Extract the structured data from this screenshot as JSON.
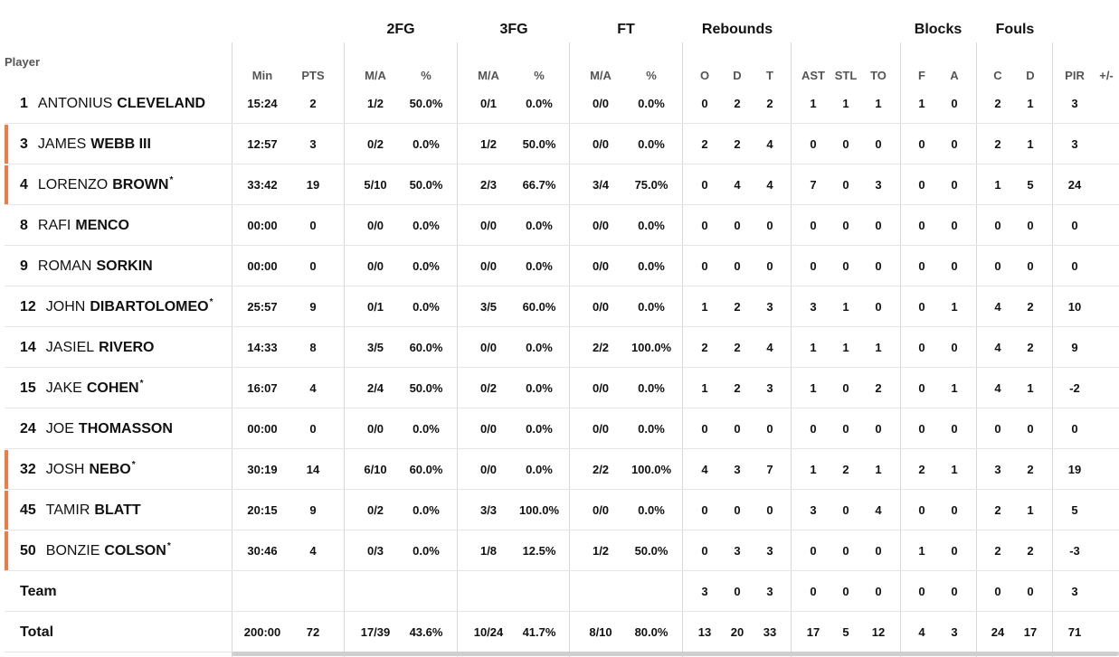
{
  "header": {
    "player_label": "Player",
    "groups": {
      "fg2": "2FG",
      "fg3": "3FG",
      "ft": "FT",
      "rebounds": "Rebounds",
      "blocks": "Blocks",
      "fouls": "Fouls"
    },
    "columns": {
      "min": "Min",
      "pts": "PTS",
      "fg2_ma": "M/A",
      "fg2_pct": "%",
      "fg3_ma": "M/A",
      "fg3_pct": "%",
      "ft_ma": "M/A",
      "ft_pct": "%",
      "reb_o": "O",
      "reb_d": "D",
      "reb_t": "T",
      "ast": "AST",
      "stl": "STL",
      "to": "TO",
      "blk_f": "F",
      "blk_a": "A",
      "foul_c": "C",
      "foul_d": "D",
      "pir": "PIR",
      "plusminus": "+/-"
    }
  },
  "colors": {
    "accent": "#f07a45",
    "grid": "#d8d8d8",
    "row_divider": "#e5e5e5",
    "header_text": "#555555"
  },
  "players": [
    {
      "num": "1",
      "first": "ANTONIUS",
      "last": "CLEVELAND",
      "starter": "",
      "on_court": false,
      "stats": {
        "min": "15:24",
        "pts": "2",
        "fg2_ma": "1/2",
        "fg2_pct": "50.0%",
        "fg3_ma": "0/1",
        "fg3_pct": "0.0%",
        "ft_ma": "0/0",
        "ft_pct": "0.0%",
        "reb_o": "0",
        "reb_d": "2",
        "reb_t": "2",
        "ast": "1",
        "stl": "1",
        "to": "1",
        "blk_f": "1",
        "blk_a": "0",
        "foul_c": "2",
        "foul_d": "1",
        "pir": "3"
      }
    },
    {
      "num": "3",
      "first": "JAMES",
      "last": "WEBB III",
      "starter": "",
      "on_court": true,
      "stats": {
        "min": "12:57",
        "pts": "3",
        "fg2_ma": "0/2",
        "fg2_pct": "0.0%",
        "fg3_ma": "1/2",
        "fg3_pct": "50.0%",
        "ft_ma": "0/0",
        "ft_pct": "0.0%",
        "reb_o": "2",
        "reb_d": "2",
        "reb_t": "4",
        "ast": "0",
        "stl": "0",
        "to": "0",
        "blk_f": "0",
        "blk_a": "0",
        "foul_c": "2",
        "foul_d": "1",
        "pir": "3"
      }
    },
    {
      "num": "4",
      "first": "LORENZO",
      "last": "BROWN",
      "starter": "*",
      "on_court": true,
      "stats": {
        "min": "33:42",
        "pts": "19",
        "fg2_ma": "5/10",
        "fg2_pct": "50.0%",
        "fg3_ma": "2/3",
        "fg3_pct": "66.7%",
        "ft_ma": "3/4",
        "ft_pct": "75.0%",
        "reb_o": "0",
        "reb_d": "4",
        "reb_t": "4",
        "ast": "7",
        "stl": "0",
        "to": "3",
        "blk_f": "0",
        "blk_a": "0",
        "foul_c": "1",
        "foul_d": "5",
        "pir": "24"
      }
    },
    {
      "num": "8",
      "first": "RAFI",
      "last": "MENCO",
      "starter": "",
      "on_court": false,
      "stats": {
        "min": "00:00",
        "pts": "0",
        "fg2_ma": "0/0",
        "fg2_pct": "0.0%",
        "fg3_ma": "0/0",
        "fg3_pct": "0.0%",
        "ft_ma": "0/0",
        "ft_pct": "0.0%",
        "reb_o": "0",
        "reb_d": "0",
        "reb_t": "0",
        "ast": "0",
        "stl": "0",
        "to": "0",
        "blk_f": "0",
        "blk_a": "0",
        "foul_c": "0",
        "foul_d": "0",
        "pir": "0"
      }
    },
    {
      "num": "9",
      "first": "ROMAN",
      "last": "SORKIN",
      "starter": "",
      "on_court": false,
      "stats": {
        "min": "00:00",
        "pts": "0",
        "fg2_ma": "0/0",
        "fg2_pct": "0.0%",
        "fg3_ma": "0/0",
        "fg3_pct": "0.0%",
        "ft_ma": "0/0",
        "ft_pct": "0.0%",
        "reb_o": "0",
        "reb_d": "0",
        "reb_t": "0",
        "ast": "0",
        "stl": "0",
        "to": "0",
        "blk_f": "0",
        "blk_a": "0",
        "foul_c": "0",
        "foul_d": "0",
        "pir": "0"
      }
    },
    {
      "num": "12",
      "first": "JOHN",
      "last": "DIBARTOLOMEO",
      "starter": "*",
      "on_court": false,
      "stats": {
        "min": "25:57",
        "pts": "9",
        "fg2_ma": "0/1",
        "fg2_pct": "0.0%",
        "fg3_ma": "3/5",
        "fg3_pct": "60.0%",
        "ft_ma": "0/0",
        "ft_pct": "0.0%",
        "reb_o": "1",
        "reb_d": "2",
        "reb_t": "3",
        "ast": "3",
        "stl": "1",
        "to": "0",
        "blk_f": "0",
        "blk_a": "1",
        "foul_c": "4",
        "foul_d": "2",
        "pir": "10"
      }
    },
    {
      "num": "14",
      "first": "JASIEL",
      "last": "RIVERO",
      "starter": "",
      "on_court": false,
      "stats": {
        "min": "14:33",
        "pts": "8",
        "fg2_ma": "3/5",
        "fg2_pct": "60.0%",
        "fg3_ma": "0/0",
        "fg3_pct": "0.0%",
        "ft_ma": "2/2",
        "ft_pct": "100.0%",
        "reb_o": "2",
        "reb_d": "2",
        "reb_t": "4",
        "ast": "1",
        "stl": "1",
        "to": "1",
        "blk_f": "0",
        "blk_a": "0",
        "foul_c": "4",
        "foul_d": "2",
        "pir": "9"
      }
    },
    {
      "num": "15",
      "first": "JAKE",
      "last": "COHEN",
      "starter": "*",
      "on_court": false,
      "stats": {
        "min": "16:07",
        "pts": "4",
        "fg2_ma": "2/4",
        "fg2_pct": "50.0%",
        "fg3_ma": "0/2",
        "fg3_pct": "0.0%",
        "ft_ma": "0/0",
        "ft_pct": "0.0%",
        "reb_o": "1",
        "reb_d": "2",
        "reb_t": "3",
        "ast": "1",
        "stl": "0",
        "to": "2",
        "blk_f": "0",
        "blk_a": "1",
        "foul_c": "4",
        "foul_d": "1",
        "pir": "-2"
      }
    },
    {
      "num": "24",
      "first": "JOE",
      "last": "THOMASSON",
      "starter": "",
      "on_court": false,
      "stats": {
        "min": "00:00",
        "pts": "0",
        "fg2_ma": "0/0",
        "fg2_pct": "0.0%",
        "fg3_ma": "0/0",
        "fg3_pct": "0.0%",
        "ft_ma": "0/0",
        "ft_pct": "0.0%",
        "reb_o": "0",
        "reb_d": "0",
        "reb_t": "0",
        "ast": "0",
        "stl": "0",
        "to": "0",
        "blk_f": "0",
        "blk_a": "0",
        "foul_c": "0",
        "foul_d": "0",
        "pir": "0"
      }
    },
    {
      "num": "32",
      "first": "JOSH",
      "last": "NEBO",
      "starter": "*",
      "on_court": true,
      "stats": {
        "min": "30:19",
        "pts": "14",
        "fg2_ma": "6/10",
        "fg2_pct": "60.0%",
        "fg3_ma": "0/0",
        "fg3_pct": "0.0%",
        "ft_ma": "2/2",
        "ft_pct": "100.0%",
        "reb_o": "4",
        "reb_d": "3",
        "reb_t": "7",
        "ast": "1",
        "stl": "2",
        "to": "1",
        "blk_f": "2",
        "blk_a": "1",
        "foul_c": "3",
        "foul_d": "2",
        "pir": "19"
      }
    },
    {
      "num": "45",
      "first": "TAMIR",
      "last": "BLATT",
      "starter": "",
      "on_court": true,
      "stats": {
        "min": "20:15",
        "pts": "9",
        "fg2_ma": "0/2",
        "fg2_pct": "0.0%",
        "fg3_ma": "3/3",
        "fg3_pct": "100.0%",
        "ft_ma": "0/0",
        "ft_pct": "0.0%",
        "reb_o": "0",
        "reb_d": "0",
        "reb_t": "0",
        "ast": "3",
        "stl": "0",
        "to": "4",
        "blk_f": "0",
        "blk_a": "0",
        "foul_c": "2",
        "foul_d": "1",
        "pir": "5"
      }
    },
    {
      "num": "50",
      "first": "BONZIE",
      "last": "COLSON",
      "starter": "*",
      "on_court": true,
      "stats": {
        "min": "30:46",
        "pts": "4",
        "fg2_ma": "0/3",
        "fg2_pct": "0.0%",
        "fg3_ma": "1/8",
        "fg3_pct": "12.5%",
        "ft_ma": "1/2",
        "ft_pct": "50.0%",
        "reb_o": "0",
        "reb_d": "3",
        "reb_t": "3",
        "ast": "0",
        "stl": "0",
        "to": "0",
        "blk_f": "1",
        "blk_a": "0",
        "foul_c": "2",
        "foul_d": "2",
        "pir": "-3"
      }
    }
  ],
  "team": {
    "label": "Team",
    "stats": {
      "min": "",
      "pts": "",
      "fg2_ma": "",
      "fg2_pct": "",
      "fg3_ma": "",
      "fg3_pct": "",
      "ft_ma": "",
      "ft_pct": "",
      "reb_o": "3",
      "reb_d": "0",
      "reb_t": "3",
      "ast": "0",
      "stl": "0",
      "to": "0",
      "blk_f": "0",
      "blk_a": "0",
      "foul_c": "0",
      "foul_d": "0",
      "pir": "3"
    }
  },
  "total": {
    "label": "Total",
    "stats": {
      "min": "200:00",
      "pts": "72",
      "fg2_ma": "17/39",
      "fg2_pct": "43.6%",
      "fg3_ma": "10/24",
      "fg3_pct": "41.7%",
      "ft_ma": "8/10",
      "ft_pct": "80.0%",
      "reb_o": "13",
      "reb_d": "20",
      "reb_t": "33",
      "ast": "17",
      "stl": "5",
      "to": "12",
      "blk_f": "4",
      "blk_a": "3",
      "foul_c": "24",
      "foul_d": "17",
      "pir": "71"
    }
  }
}
